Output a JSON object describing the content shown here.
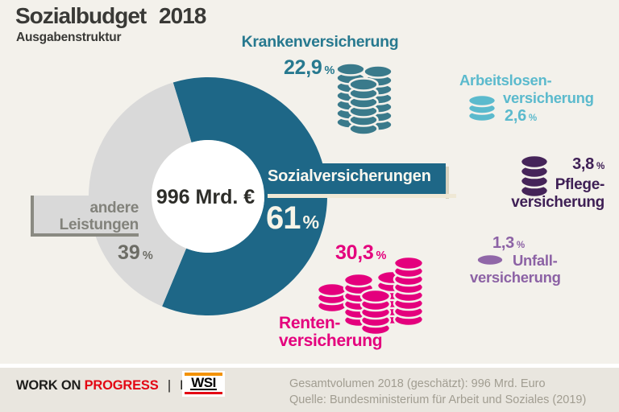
{
  "header": {
    "title": "Sozialbudget 2018",
    "subtitle": "Ausgabenstruktur"
  },
  "donut": {
    "center_total": "996 Mrd. €",
    "main": {
      "label": "Sozialversicherungen",
      "value": "61",
      "unit": "%",
      "color": "#1E6787"
    },
    "other": {
      "label_line1": "andere",
      "label_line2": "Leistungen",
      "value": "39",
      "unit": "%",
      "color": "#D9D9D9"
    }
  },
  "sections": {
    "kranken": {
      "label": "Krankenversicherung",
      "value": "22,9",
      "unit": "%",
      "color": "#27798F",
      "coin_color": "#3A7A8B"
    },
    "arbeitslosen": {
      "label_line1": "Arbeitslosen-",
      "label_line2": "versicherung",
      "value": "2,6",
      "unit": "%",
      "color": "#5BBACD",
      "coin_color": "#5BBACD"
    },
    "pflege": {
      "label_line1": "Pflege-",
      "label_line2": "versicherung",
      "value": "3,8",
      "unit": "%",
      "color": "#3F2056",
      "coin_color": "#452459"
    },
    "unfall": {
      "label_line1": "Unfall-",
      "label_line2": "versicherung",
      "value": "1,3",
      "unit": "%",
      "color": "#8C62A5",
      "coin_color": "#9067A8"
    },
    "renten": {
      "label_line1": "Renten-",
      "label_line2": "versicherung",
      "value": "30,3",
      "unit": "%",
      "color": "#E4007D",
      "coin_color": "#E4007D"
    }
  },
  "footer": {
    "brand_work": "WORK ON",
    "brand_progress": "PROGRESS",
    "brand_separator": "|",
    "brand_blog": "Blog",
    "logo_text": "WSI",
    "note_line1": "Gesamtvolumen 2018 (geschätzt): 996 Mrd. Euro",
    "note_line2": "Quelle: Bundesministerium für Arbeit und Soziales (2019)"
  },
  "colors": {
    "background": "#F3F1EB",
    "footer_background": "#E9E6DF",
    "donut_teal": "#1E6787",
    "donut_gray": "#D9D9D9",
    "banner_shadow": "#D8D2BF",
    "banner_underline": "#EFE8D5",
    "gray_border": "#8A8A82",
    "brand_red": "#E30613",
    "wsi_orange": "#F39200",
    "footer_note_gray": "#A19D91"
  },
  "chart_data": {
    "type": "pie",
    "title": "Sozialbudget 2018 – Ausgabenstruktur",
    "total_label": "996 Mrd. €",
    "total_value_mrd_eur": 996,
    "donut_start_angle_deg": -17,
    "slices": [
      {
        "label": "Sozialversicherungen",
        "value": 61,
        "color": "#1E6787"
      },
      {
        "label": "andere Leistungen",
        "value": 39,
        "color": "#D9D9D9"
      }
    ],
    "breakdown_pct_of_total": [
      {
        "label": "Krankenversicherung",
        "value": 22.9
      },
      {
        "label": "Arbeitslosenversicherung",
        "value": 2.6
      },
      {
        "label": "Pflegeversicherung",
        "value": 3.8
      },
      {
        "label": "Unfallversicherung",
        "value": 1.3
      },
      {
        "label": "Rentenversicherung",
        "value": 30.3
      }
    ]
  }
}
